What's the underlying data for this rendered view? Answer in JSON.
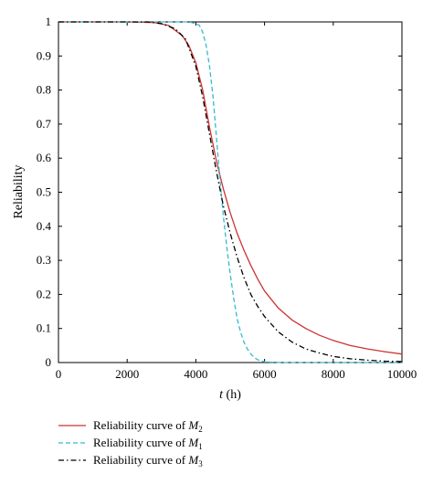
{
  "chart_data": {
    "type": "line",
    "xlabel": {
      "var": "t",
      "unit": " (h)"
    },
    "ylabel": "Reliability",
    "xlim": [
      0,
      10000
    ],
    "ylim": [
      0,
      1
    ],
    "xticks": [
      "0",
      "2000",
      "4000",
      "6000",
      "8000",
      "10000"
    ],
    "yticks": [
      "0",
      "0.1",
      "0.2",
      "0.3",
      "0.4",
      "0.5",
      "0.6",
      "0.7",
      "0.8",
      "0.9",
      "1"
    ],
    "grid": false,
    "legend_position": "bottom",
    "series": [
      {
        "name": "Reliability curve of M",
        "subscript": "2",
        "color": "#cc3333",
        "style": "solid",
        "x": [
          0,
          2000,
          2800,
          3200,
          3600,
          3800,
          4000,
          4200,
          4400,
          4600,
          4800,
          5000,
          5200,
          5400,
          5600,
          5800,
          6000,
          6400,
          6800,
          7200,
          7600,
          8000,
          8500,
          9000,
          9500,
          10000
        ],
        "y": [
          1.0,
          1.0,
          0.998,
          0.99,
          0.96,
          0.93,
          0.88,
          0.8,
          0.69,
          0.59,
          0.51,
          0.44,
          0.38,
          0.33,
          0.285,
          0.245,
          0.21,
          0.16,
          0.125,
          0.1,
          0.08,
          0.065,
          0.05,
          0.04,
          0.032,
          0.025
        ]
      },
      {
        "name": "Reliability curve of M",
        "subscript": "1",
        "color": "#33bbcc",
        "style": "dashed",
        "x": [
          0,
          3800,
          4000,
          4100,
          4200,
          4300,
          4400,
          4500,
          4600,
          4700,
          4800,
          4900,
          5000,
          5100,
          5200,
          5300,
          5400,
          5500,
          5600,
          5700,
          5800,
          6000,
          6500,
          10000
        ],
        "y": [
          1.0,
          1.0,
          0.995,
          0.99,
          0.97,
          0.93,
          0.87,
          0.78,
          0.66,
          0.54,
          0.43,
          0.34,
          0.26,
          0.19,
          0.13,
          0.09,
          0.06,
          0.04,
          0.025,
          0.015,
          0.008,
          0.002,
          0.0,
          0.0
        ]
      },
      {
        "name": "Reliability curve of M",
        "subscript": "3",
        "color": "#000000",
        "style": "dashdot",
        "x": [
          0,
          2600,
          3000,
          3400,
          3700,
          4000,
          4200,
          4400,
          4600,
          4800,
          5000,
          5200,
          5400,
          5600,
          5800,
          6000,
          6400,
          6800,
          7200,
          7600,
          8000,
          8500,
          9000,
          9500,
          10000
        ],
        "y": [
          1.0,
          1.0,
          0.995,
          0.98,
          0.95,
          0.87,
          0.78,
          0.67,
          0.56,
          0.46,
          0.38,
          0.31,
          0.25,
          0.2,
          0.165,
          0.135,
          0.09,
          0.06,
          0.04,
          0.028,
          0.018,
          0.011,
          0.007,
          0.004,
          0.003
        ]
      }
    ]
  }
}
